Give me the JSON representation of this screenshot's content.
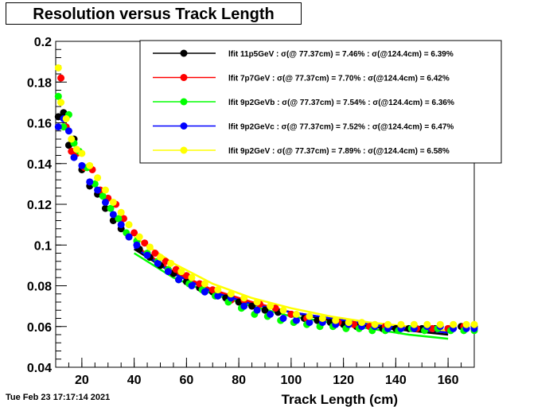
{
  "title": "Resolution versus Track Length",
  "timestamp": "Tue Feb 23 17:17:14 2021",
  "chart_data": {
    "type": "scatter",
    "xlabel": "Track Length (cm)",
    "ylabel": "",
    "xlim": [
      10,
      170
    ],
    "ylim": [
      0.04,
      0.2
    ],
    "xticks": [
      "20",
      "40",
      "60",
      "80",
      "100",
      "120",
      "140",
      "160"
    ],
    "yticks": [
      "0.04",
      "0.06",
      "0.08",
      "0.1",
      "0.12",
      "0.14",
      "0.16",
      "0.18",
      "0.2"
    ],
    "grid": false,
    "legend_position": "top-right",
    "series": [
      {
        "name": "lfit 11p5GeV",
        "legend": "lfit 11p5GeV : σ(@ 77.37cm) =  7.46% : σ(@124.4cm) =  6.39%",
        "color": "#000000",
        "x": [
          11,
          13,
          15,
          17,
          20,
          23,
          26,
          29,
          32,
          35,
          38,
          42,
          46,
          50,
          55,
          60,
          65,
          70,
          75,
          80,
          85,
          90,
          95,
          100,
          105,
          110,
          115,
          120,
          125,
          130,
          135,
          140,
          145,
          150,
          155,
          160,
          165,
          170
        ],
        "y": [
          0.163,
          0.165,
          0.149,
          0.152,
          0.137,
          0.129,
          0.125,
          0.118,
          0.112,
          0.108,
          0.104,
          0.098,
          0.094,
          0.09,
          0.086,
          0.082,
          0.079,
          0.077,
          0.074,
          0.072,
          0.07,
          0.068,
          0.067,
          0.066,
          0.064,
          0.063,
          0.062,
          0.061,
          0.06,
          0.06,
          0.059,
          0.059,
          0.059,
          0.059,
          0.059,
          0.059,
          0.06,
          0.06
        ]
      },
      {
        "name": "lfit 7p7GeV",
        "legend": "lfit 7p7GeV : σ(@ 77.37cm) =  7.70% : σ(@124.4cm) =  6.42%",
        "color": "#ff0000",
        "x": [
          12,
          14,
          16,
          18,
          21,
          24,
          27,
          30,
          33,
          36,
          40,
          44,
          48,
          52,
          56,
          60,
          65,
          70,
          77,
          82,
          88,
          94,
          100,
          106,
          112,
          118,
          124,
          130,
          136,
          142,
          148,
          154,
          160,
          166
        ],
        "y": [
          0.182,
          0.158,
          0.146,
          0.145,
          0.138,
          0.137,
          0.127,
          0.123,
          0.12,
          0.113,
          0.106,
          0.101,
          0.096,
          0.092,
          0.088,
          0.085,
          0.081,
          0.078,
          0.073,
          0.073,
          0.071,
          0.069,
          0.066,
          0.064,
          0.063,
          0.062,
          0.061,
          0.06,
          0.06,
          0.06,
          0.059,
          0.059,
          0.059,
          0.06
        ]
      },
      {
        "name": "lfit 9p2GeVb",
        "legend": "lfit 9p2GeVb : σ(@ 77.37cm) =  7.54% : σ(@124.4cm) =  6.36%",
        "color": "#00ff00",
        "x": [
          11,
          13,
          15,
          17,
          19,
          22,
          25,
          28,
          31,
          34,
          37,
          41,
          45,
          49,
          53,
          57,
          61,
          66,
          71,
          76,
          81,
          86,
          91,
          96,
          101,
          106,
          111,
          116,
          121,
          126,
          131,
          136,
          141,
          146,
          151,
          156,
          161,
          166,
          170
        ],
        "y": [
          0.173,
          0.158,
          0.164,
          0.15,
          0.146,
          0.138,
          0.13,
          0.124,
          0.118,
          0.113,
          0.106,
          0.102,
          0.096,
          0.092,
          0.088,
          0.083,
          0.081,
          0.078,
          0.075,
          0.072,
          0.069,
          0.066,
          0.065,
          0.063,
          0.062,
          0.061,
          0.06,
          0.06,
          0.059,
          0.059,
          0.058,
          0.058,
          0.058,
          0.059,
          0.058,
          0.059,
          0.058,
          0.058,
          0.058
        ]
      },
      {
        "name": "lfit 9p2GeVc",
        "legend": "lfit 9p2GeVc : σ(@ 77.37cm) =  7.52% : σ(@124.4cm) =  6.47%",
        "color": "#0000ff",
        "x": [
          11,
          13,
          15,
          17,
          20,
          23,
          26,
          29,
          32,
          35,
          38,
          41,
          45,
          49,
          53,
          57,
          62,
          67,
          72,
          77,
          82,
          87,
          92,
          97,
          102,
          107,
          112,
          117,
          122,
          127,
          132,
          137,
          142,
          147,
          152,
          157,
          162,
          167,
          170
        ],
        "y": [
          0.158,
          0.162,
          0.156,
          0.143,
          0.139,
          0.131,
          0.127,
          0.121,
          0.115,
          0.11,
          0.104,
          0.1,
          0.095,
          0.091,
          0.087,
          0.083,
          0.08,
          0.077,
          0.075,
          0.074,
          0.07,
          0.068,
          0.066,
          0.064,
          0.063,
          0.062,
          0.062,
          0.061,
          0.061,
          0.06,
          0.06,
          0.059,
          0.059,
          0.059,
          0.06,
          0.06,
          0.059,
          0.059,
          0.059
        ]
      },
      {
        "name": "lfit 9p2GeV",
        "legend": "lfit 9p2GeV : σ(@ 77.37cm) =  7.89% : σ(@124.4cm) =  6.58%",
        "color": "#ffff00",
        "x": [
          11,
          12,
          14,
          16,
          18,
          20,
          23,
          26,
          29,
          32,
          35,
          38,
          42,
          46,
          50,
          54,
          58,
          62,
          67,
          72,
          77,
          82,
          87,
          92,
          97,
          102,
          107,
          112,
          117,
          122,
          127,
          132,
          137,
          142,
          147,
          152,
          157,
          162,
          167,
          170
        ],
        "y": [
          0.187,
          0.17,
          0.162,
          0.152,
          0.147,
          0.145,
          0.139,
          0.133,
          0.127,
          0.121,
          0.116,
          0.11,
          0.104,
          0.099,
          0.094,
          0.091,
          0.087,
          0.084,
          0.081,
          0.078,
          0.076,
          0.074,
          0.072,
          0.07,
          0.068,
          0.066,
          0.065,
          0.064,
          0.063,
          0.062,
          0.062,
          0.061,
          0.061,
          0.061,
          0.061,
          0.061,
          0.061,
          0.061,
          0.061,
          0.061
        ]
      }
    ],
    "fit_lines": [
      {
        "color": "#000000",
        "x": [
          40,
          55,
          70,
          85,
          100,
          115,
          130,
          145,
          160
        ],
        "y": [
          0.098,
          0.086,
          0.077,
          0.071,
          0.067,
          0.063,
          0.06,
          0.058,
          0.056
        ]
      },
      {
        "color": "#ff0000",
        "x": [
          40,
          55,
          70,
          85,
          100,
          115,
          130,
          145,
          160
        ],
        "y": [
          0.1,
          0.087,
          0.078,
          0.072,
          0.067,
          0.064,
          0.061,
          0.059,
          0.057
        ]
      },
      {
        "color": "#00ff00",
        "x": [
          40,
          55,
          70,
          85,
          100,
          115,
          130,
          145,
          160
        ],
        "y": [
          0.096,
          0.084,
          0.076,
          0.07,
          0.065,
          0.062,
          0.059,
          0.056,
          0.054
        ]
      },
      {
        "color": "#0000ff",
        "x": [
          40,
          55,
          70,
          85,
          100,
          115,
          130,
          145,
          160
        ],
        "y": [
          0.099,
          0.086,
          0.077,
          0.071,
          0.067,
          0.064,
          0.061,
          0.059,
          0.057
        ]
      },
      {
        "color": "#ffff00",
        "x": [
          40,
          55,
          70,
          85,
          100,
          115,
          130,
          145,
          160
        ],
        "y": [
          0.104,
          0.091,
          0.081,
          0.074,
          0.069,
          0.065,
          0.062,
          0.06,
          0.058
        ]
      }
    ]
  }
}
